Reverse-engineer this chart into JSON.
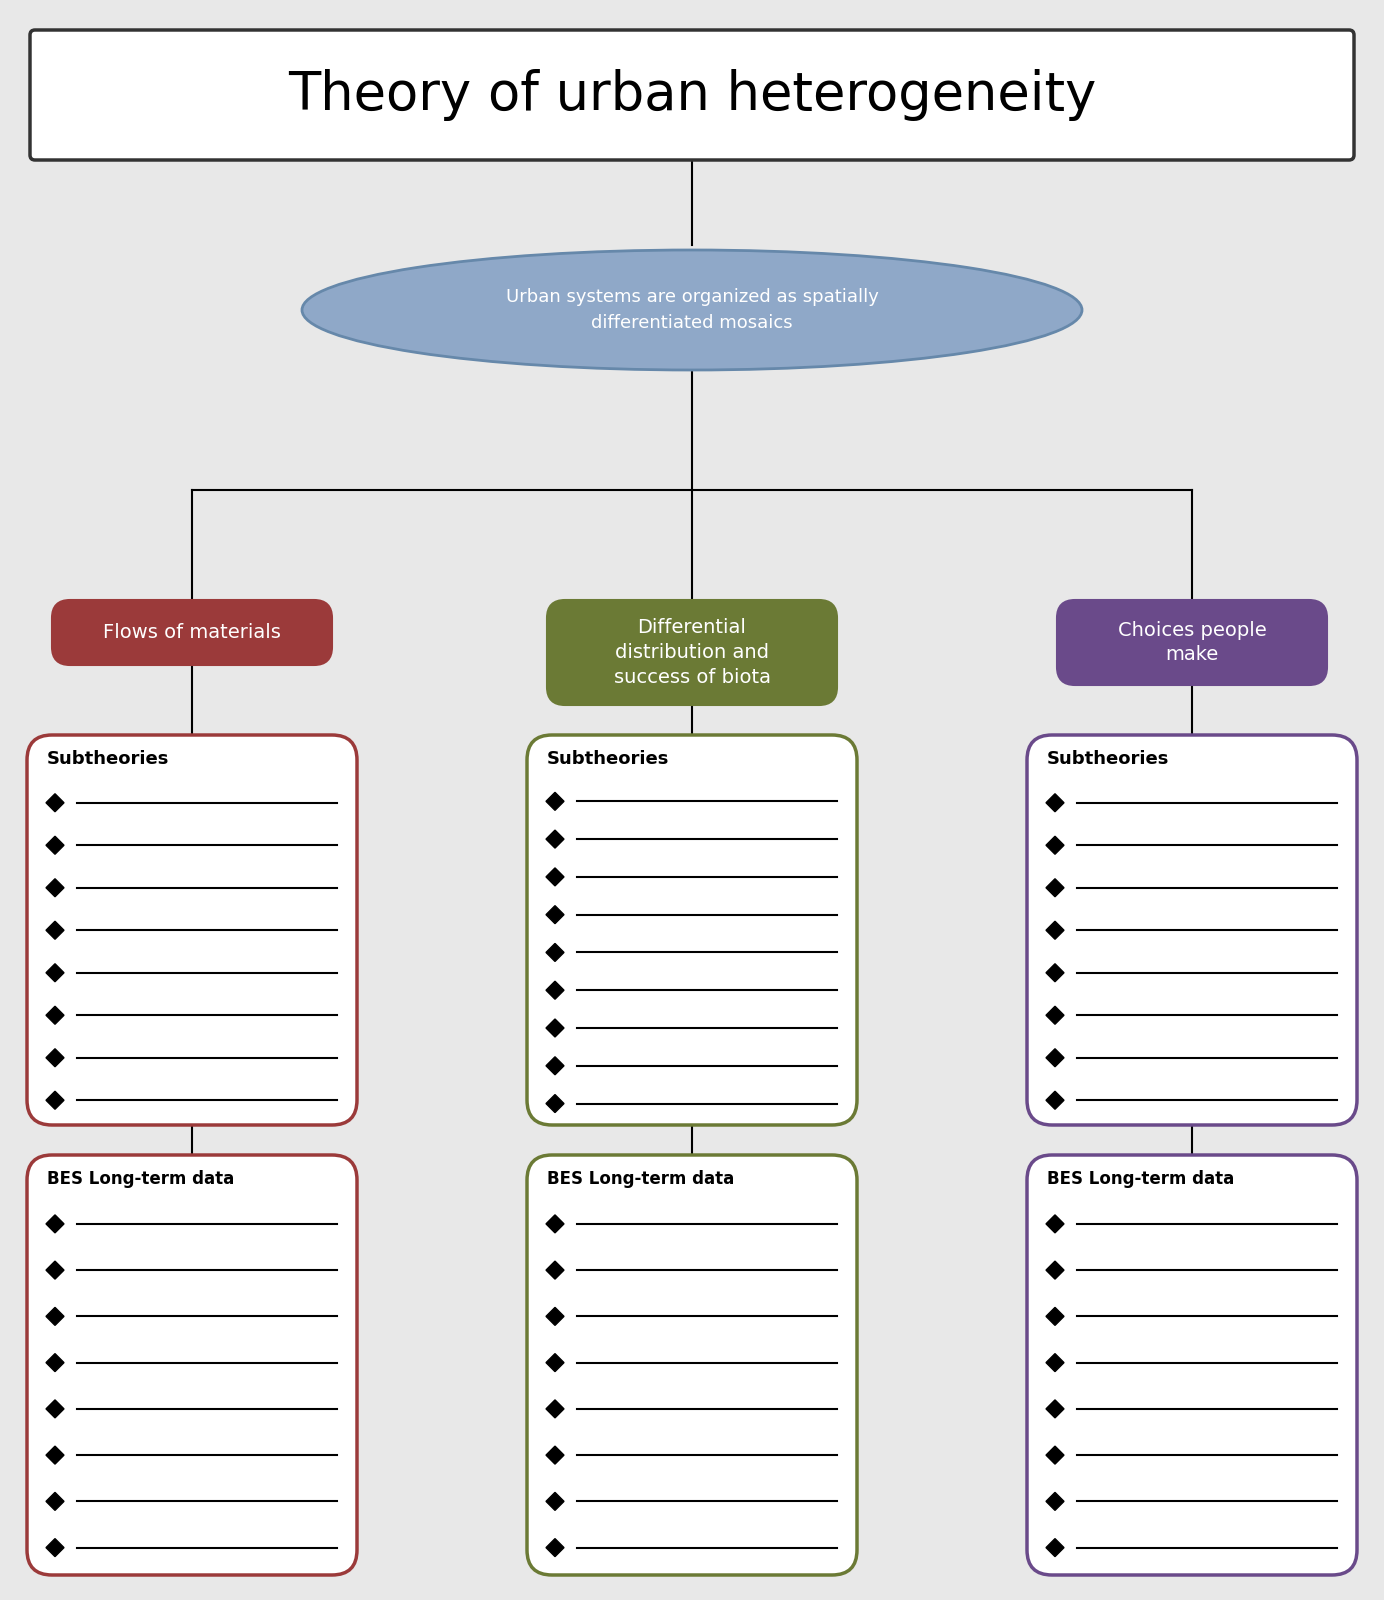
{
  "title": "Theory of urban heterogeneity",
  "ellipse_text": "Urban systems are organized as spatially\ndifferentiated mosaics",
  "ellipse_color": "#8fa8c8",
  "ellipse_edge_color": "#6688aa",
  "branch1_label": "Flows of materials",
  "branch2_label": "Differential\ndistribution and\nsuccess of biota",
  "branch3_label": "Choices people\nmake",
  "branch1_color": "#9b3a3a",
  "branch2_color": "#6b7a35",
  "branch3_color": "#6a4a8a",
  "subtheory_border1": "#9b3a3a",
  "subtheory_border2": "#6b7a35",
  "subtheory_border3": "#6a4a8a",
  "bes_border1": "#9b3a3a",
  "bes_border2": "#6b7a35",
  "bes_border3": "#6a4a8a",
  "subtheory_items1": 8,
  "subtheory_items2": 9,
  "subtheory_items3": 8,
  "bes_items1": 8,
  "bes_items2": 8,
  "bes_items3": 8,
  "bg_color": "#e8e8e8",
  "line_color": "#000000",
  "title_fontsize": 38,
  "ellipse_fontsize": 13,
  "branch_fontsize": 14,
  "sub_header_fontsize": 13,
  "bes_header_fontsize": 12
}
